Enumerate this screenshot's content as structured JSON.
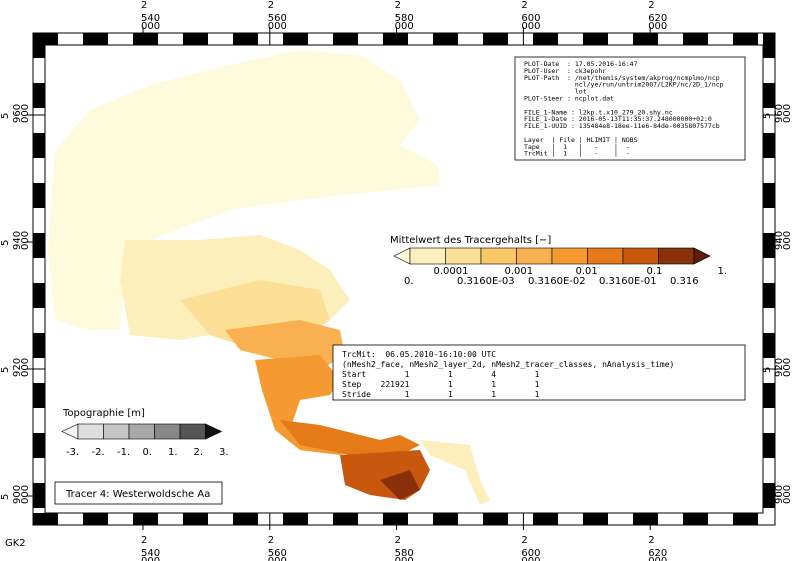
{
  "map": {
    "x_ticks": [
      {
        "prefix": "2",
        "main": "540",
        "suffix": "000"
      },
      {
        "prefix": "2",
        "main": "560",
        "suffix": "000"
      },
      {
        "prefix": "2",
        "main": "580",
        "suffix": "000"
      },
      {
        "prefix": "2",
        "main": "600",
        "suffix": "000"
      },
      {
        "prefix": "2",
        "main": "620",
        "suffix": "000"
      }
    ],
    "y_ticks": [
      {
        "prefix": "5",
        "main": "960",
        "suffix": "000"
      },
      {
        "prefix": "5",
        "main": "940",
        "suffix": "000"
      },
      {
        "prefix": "5",
        "main": "920",
        "suffix": "000"
      },
      {
        "prefix": "5",
        "main": "900",
        "suffix": "000"
      }
    ],
    "projection": "GK2",
    "info_lines": [
      "PLOT-Date  : 17.05.2016-16:47",
      "PLOT-User  : ck3epohr",
      "PLOT-Path  : /net/themis/system/akprog/ncmplmo/ncp",
      "             ncl/ye/run/untrim2007/L2KP/nc/2D_1/ncp",
      "             lot",
      "PLOT-Steer : ncplot.dat",
      "",
      "FILE_1-Name : l2kp.t.x10_279_20.shy.nc",
      "FILE_1-Date : 2016-05-13T11:35:37.248000000+02:0",
      "FILE_1-UUID : 135484e8-18ee-11e6-84de-0035807577cb",
      "",
      "Layer  | File | HLIMIT | NOBS",
      "Tape   |  1   |   -    |  -",
      "TrcMit |  1   |   -    |  -"
    ],
    "tracer_legend": {
      "title": "Mittelwert des Tracergehalts [−]",
      "colors": [
        "#fefbdc",
        "#fcefbc",
        "#fbdf95",
        "#f9c766",
        "#f8b050",
        "#f59a30",
        "#e57b18",
        "#c8580e",
        "#8a3008",
        "#5a1e05"
      ],
      "upper_labels": [
        "0.0001",
        "0.001",
        "0.01",
        "0.1",
        "1."
      ],
      "lower_labels": [
        "0.",
        "0.3160E-03",
        "0.3160E-02",
        "0.3160E-01",
        "0.316"
      ]
    },
    "topo_legend": {
      "title": "Topographie [m]",
      "colors": [
        "#f2f2f2",
        "#dedede",
        "#c6c6c6",
        "#a8a8a8",
        "#888888",
        "#555555",
        "#111111"
      ],
      "labels": [
        "-3.",
        "-2.",
        "-1.",
        "0.",
        "1.",
        "2.",
        "3."
      ]
    },
    "variable_box": {
      "lines": [
        "TrcMit:  06.05.2010-16:10:00 UTC",
        "(nMesh2_face, nMesh2_layer_2d, nMesh2_tracer_classes, nAnalysis_time)",
        "Start        1        1        4        1",
        "Step    221921        1        1        1",
        "Stride       1        1        1        1"
      ]
    },
    "caption": "Tracer 4: Westerwoldsche Aa"
  }
}
